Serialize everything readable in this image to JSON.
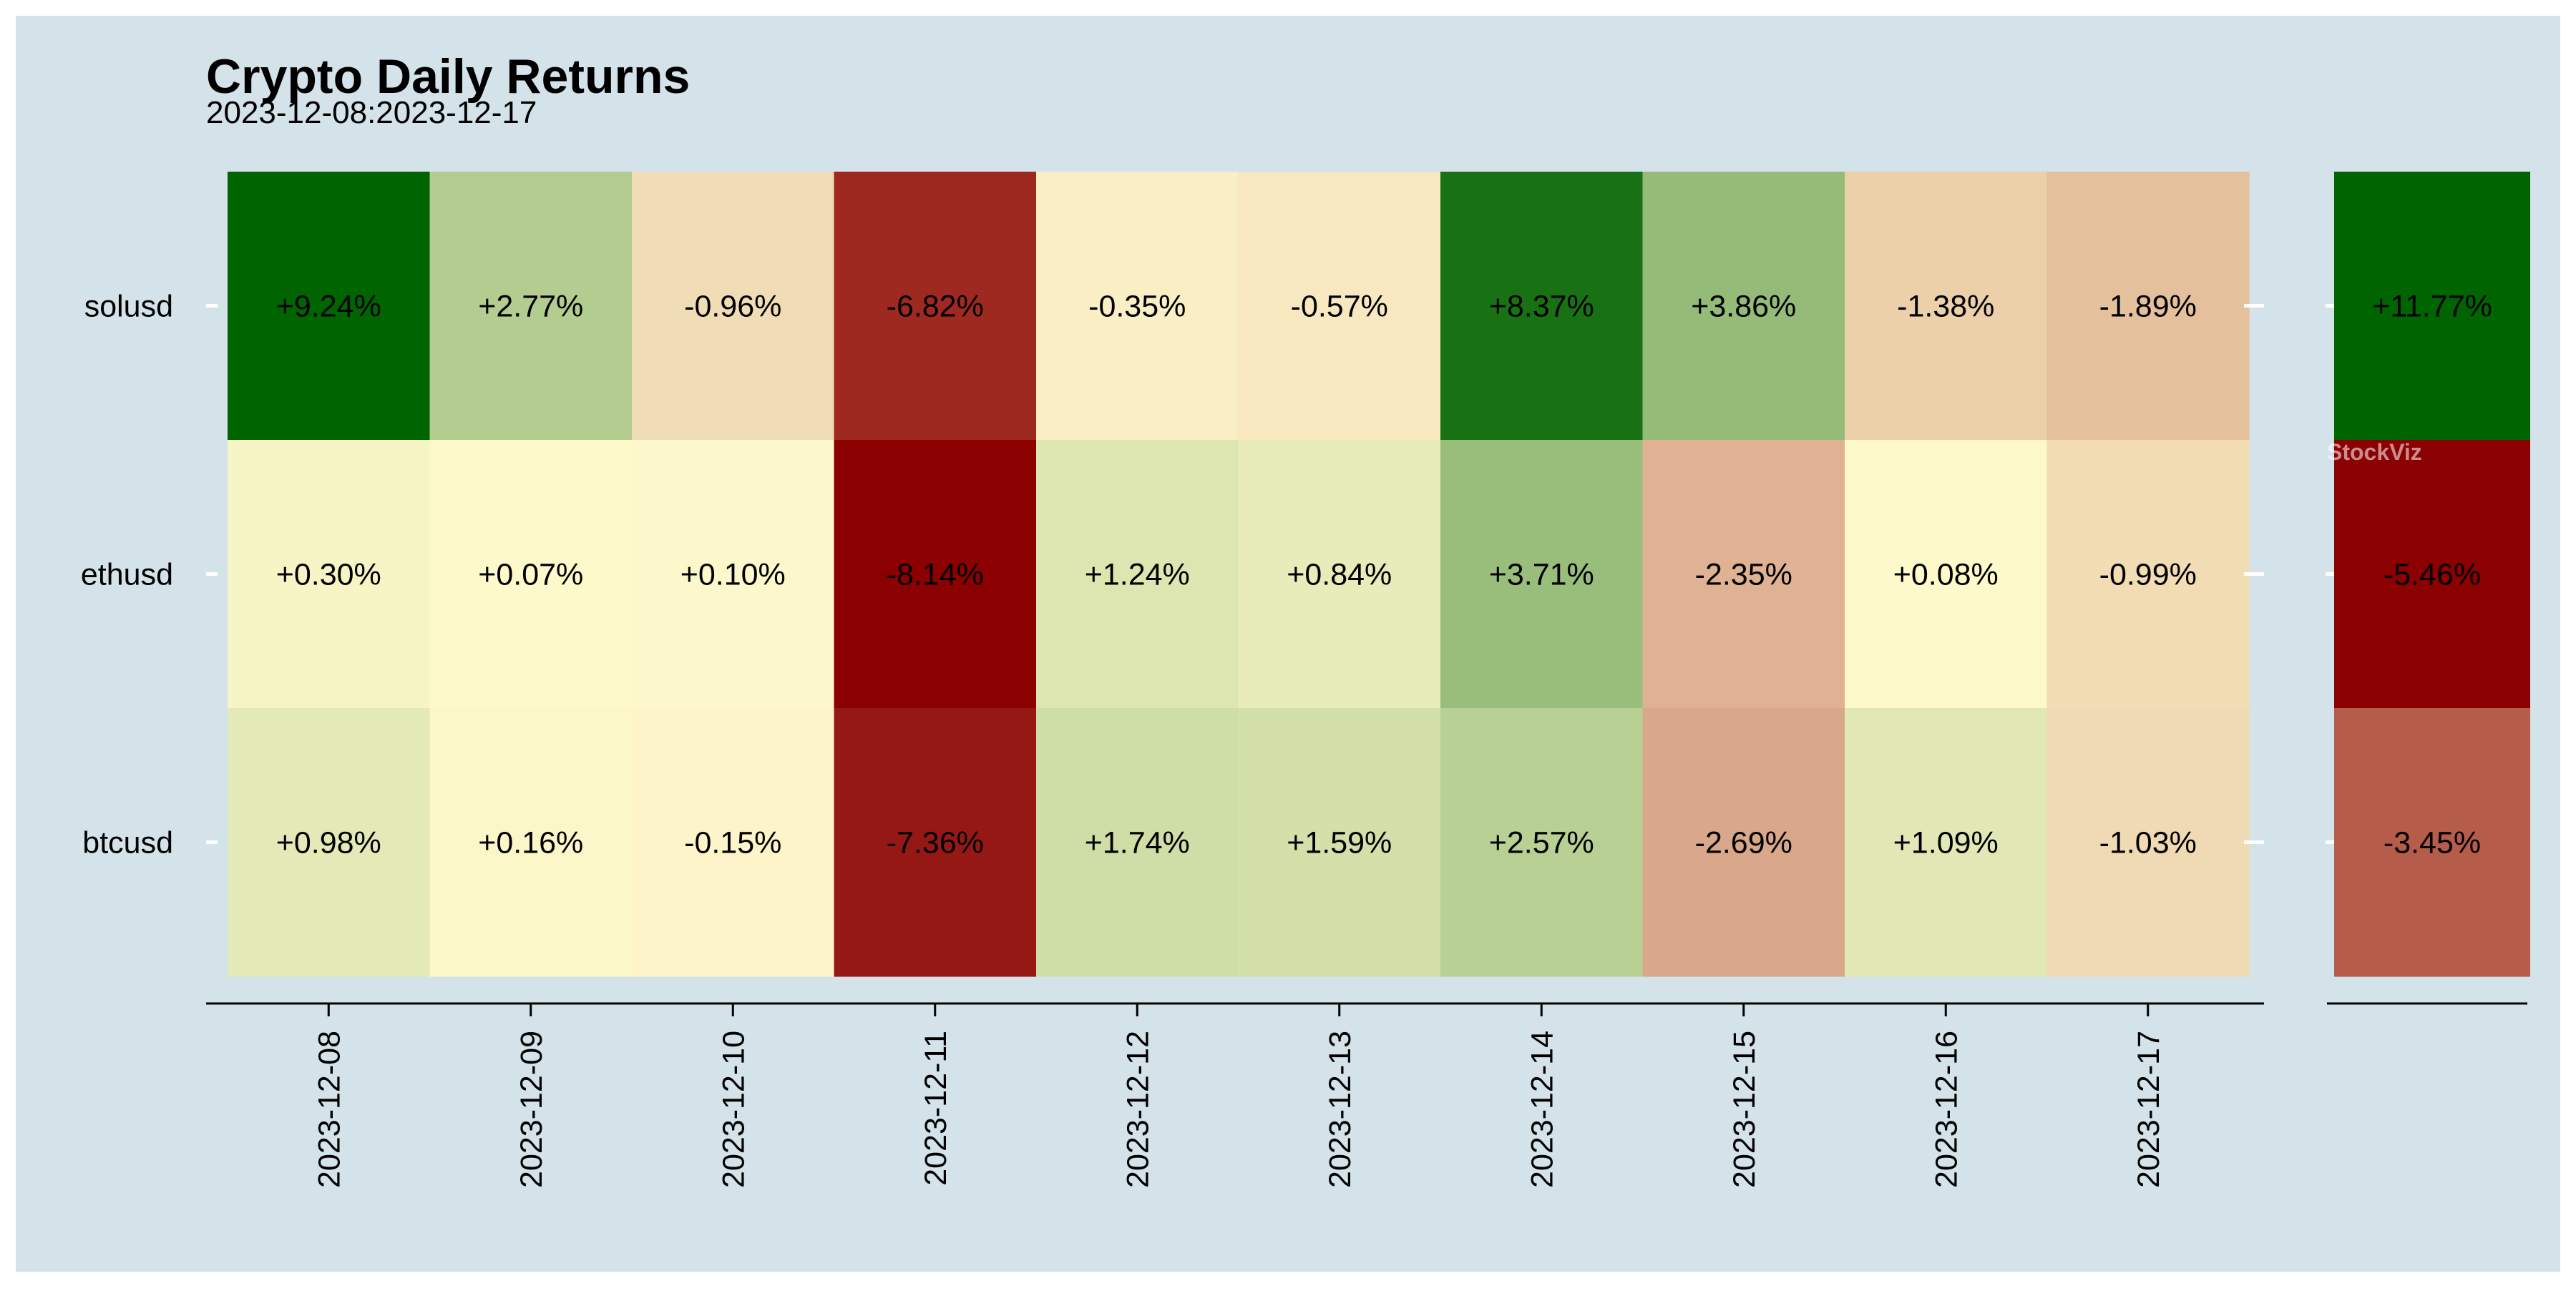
{
  "chart_data": {
    "type": "heatmap",
    "title": "Crypto Daily Returns",
    "subtitle": "2023-12-08:2023-12-17",
    "rows": [
      "solusd",
      "ethusd",
      "btcusd"
    ],
    "columns": [
      "2023-12-08",
      "2023-12-09",
      "2023-12-10",
      "2023-12-11",
      "2023-12-12",
      "2023-12-13",
      "2023-12-14",
      "2023-12-15",
      "2023-12-16",
      "2023-12-17"
    ],
    "values": [
      [
        9.24,
        2.77,
        -0.96,
        -6.82,
        -0.35,
        -0.57,
        8.37,
        3.86,
        -1.38,
        -1.89
      ],
      [
        0.3,
        0.07,
        0.1,
        -8.14,
        1.24,
        0.84,
        3.71,
        -2.35,
        0.08,
        -0.99
      ],
      [
        0.98,
        0.16,
        -0.15,
        -7.36,
        1.74,
        1.59,
        2.57,
        -2.69,
        1.09,
        -1.03
      ]
    ],
    "labels": [
      [
        "+9.24%",
        "+2.77%",
        "-0.96%",
        "-6.82%",
        "-0.35%",
        "-0.57%",
        "+8.37%",
        "+3.86%",
        "-1.38%",
        "-1.89%"
      ],
      [
        "+0.30%",
        "+0.07%",
        "+0.10%",
        "-8.14%",
        "+1.24%",
        "+0.84%",
        "+3.71%",
        "-2.35%",
        "+0.08%",
        "-0.99%"
      ],
      [
        "+0.98%",
        "+0.16%",
        "-0.15%",
        "-7.36%",
        "+1.74%",
        "+1.59%",
        "+2.57%",
        "-2.69%",
        "+1.09%",
        "-1.03%"
      ]
    ],
    "totals": {
      "values": [
        11.77,
        -5.46,
        -3.45
      ],
      "labels": [
        "+11.77%",
        "-5.46%",
        "-3.45%"
      ]
    },
    "color_scale": {
      "neg": "#8b0000",
      "mid": "#fffacd",
      "pos": "#006400"
    },
    "watermark": "StockViz",
    "grid": false,
    "legend": "none"
  },
  "colors": {
    "background": "#d4e2e9",
    "text": "#000000",
    "tick": "#ffffff"
  }
}
